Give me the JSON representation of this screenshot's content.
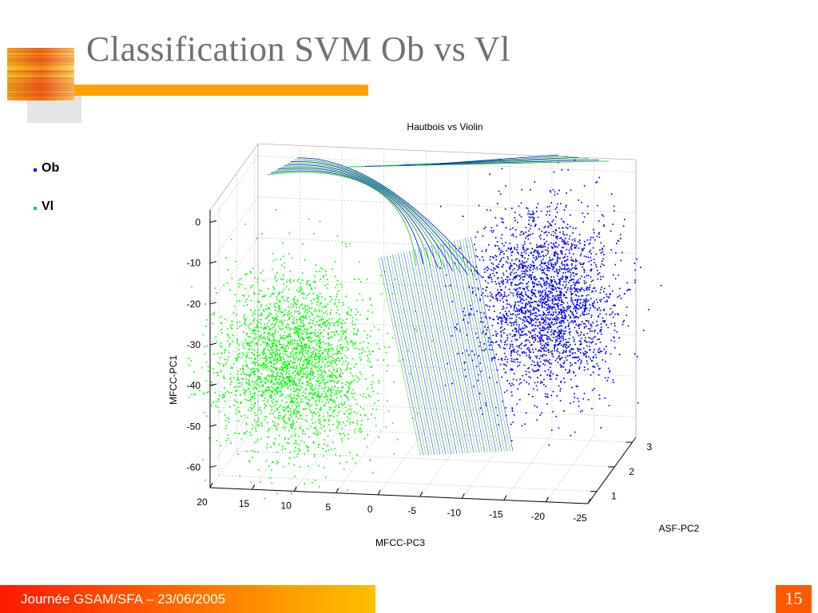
{
  "slide": {
    "title": "Classification SVM Ob vs Vl",
    "footer_text": "Journée GSAM/SFA – 23/06/2005",
    "page_number": "15",
    "accent_color": "#ffa200"
  },
  "legend": [
    {
      "label": "Ob",
      "color": "#0000ff"
    },
    {
      "label": "Vl",
      "color": "#00cc99"
    }
  ],
  "chart_data": {
    "type": "scatter",
    "projection": "3d",
    "title": "Hautbois vs Violin",
    "xlabel": "MFCC-PC3",
    "ylabel": "ASF-PC2",
    "zlabel": "MFCC-PC1",
    "x_ticks": [
      "20",
      "15",
      "10",
      "5",
      "0",
      "-5",
      "-10",
      "-15",
      "-20",
      "-25"
    ],
    "y_ticks": [
      "1",
      "2",
      "3"
    ],
    "z_ticks": [
      "0",
      "-10",
      "-20",
      "-30",
      "-40",
      "-50",
      "-60"
    ],
    "xlim": [
      20,
      -25
    ],
    "ylim": [
      0.5,
      3.2
    ],
    "zlim": [
      -65,
      3
    ],
    "grid": true,
    "series": [
      {
        "color": "#00ff00",
        "cluster_center": {
          "x": 11,
          "y": 1.0,
          "z": -37
        },
        "approx_points": 15000
      },
      {
        "color": "#0000ff",
        "cluster_center": {
          "x": -16,
          "y": 2.4,
          "z": -28
        },
        "approx_points": 15000
      }
    ],
    "decision_surface_colors": [
      "#0000ff",
      "#00cc00"
    ]
  }
}
